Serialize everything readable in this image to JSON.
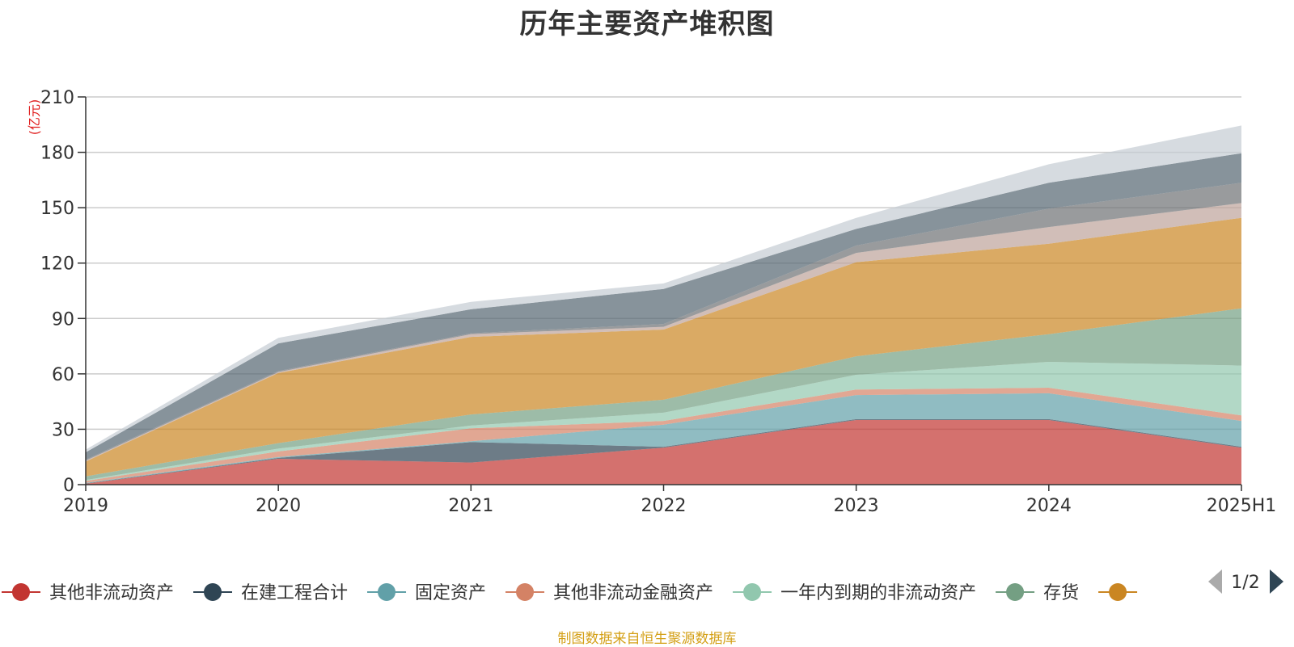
{
  "title": "历年主要资产堆积图",
  "source_note": "制图数据来自恒生聚源数据库",
  "pager": {
    "text": "1/2",
    "prev_icon": "triangle-left-icon",
    "next_icon": "triangle-right-icon"
  },
  "chart_data": {
    "type": "area",
    "stacked": true,
    "categories": [
      "2019",
      "2020",
      "2021",
      "2022",
      "2023",
      "2024",
      "2025H1"
    ],
    "ylabel": "(亿元)",
    "ylim": [
      0,
      210
    ],
    "yticks": [
      0,
      30,
      60,
      90,
      120,
      150,
      180,
      210
    ],
    "grid": true,
    "legend_position": "bottom",
    "series": [
      {
        "name": "其他非流动资产",
        "color": "#c23531",
        "values": [
          0.5,
          14,
          12,
          20,
          35,
          35,
          20
        ]
      },
      {
        "name": "在建工程合计",
        "color": "#2f4554",
        "values": [
          0.2,
          0.5,
          11,
          0.5,
          0.5,
          0.5,
          0.5
        ]
      },
      {
        "name": "固定资产",
        "color": "#61a0a8",
        "values": [
          0.3,
          0.5,
          0.5,
          12,
          13,
          14,
          14
        ]
      },
      {
        "name": "其他非流动金融资产",
        "color": "#d48265",
        "values": [
          1,
          3,
          7,
          2,
          3,
          3,
          3
        ]
      },
      {
        "name": "一年内到期的非流动资产",
        "color": "#91c7ae",
        "values": [
          0.5,
          1.5,
          1.5,
          4.5,
          8,
          14,
          27
        ]
      },
      {
        "name": "存货",
        "color": "#749f83",
        "values": [
          2,
          3,
          6,
          7,
          10,
          15,
          31
        ]
      },
      {
        "name": "",
        "color": "#ca8622",
        "values": [
          8,
          38,
          42,
          38,
          51,
          49,
          49
        ]
      },
      {
        "name": "",
        "color": "#bda29a",
        "values": [
          0.5,
          0.5,
          1.5,
          1.5,
          5,
          9,
          8
        ]
      },
      {
        "name": "",
        "color": "#6e7074",
        "values": [
          0.5,
          0.5,
          0.5,
          1.5,
          4,
          10,
          11
        ]
      },
      {
        "name": "",
        "color": "#546570",
        "values": [
          4,
          15,
          13,
          19,
          9,
          14,
          16
        ]
      },
      {
        "name": "",
        "color": "#c4ccd3",
        "values": [
          1.5,
          3,
          4,
          3,
          6,
          10,
          15
        ]
      }
    ]
  }
}
